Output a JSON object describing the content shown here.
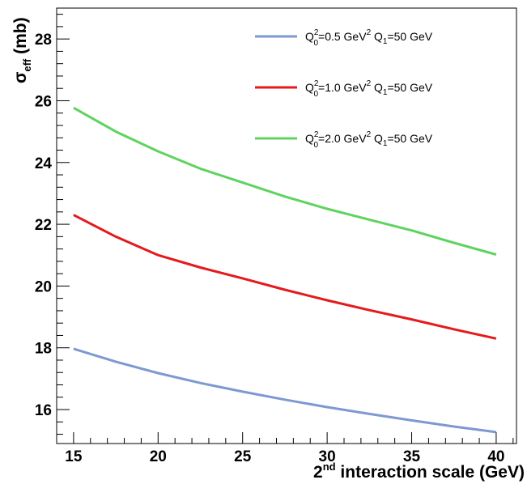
{
  "chart_data": {
    "type": "line",
    "xlabel": {
      "sup": "nd",
      "prefix": "2",
      "text": " interaction scale (GeV)"
    },
    "ylabel": {
      "main": "σ",
      "sub": "eff",
      "unit": " (mb)"
    },
    "xlim": [
      14,
      41.2
    ],
    "ylim": [
      14.9,
      29.0
    ],
    "xticks": [
      15,
      20,
      25,
      30,
      35,
      40
    ],
    "yticks": [
      16,
      18,
      20,
      22,
      24,
      26,
      28
    ],
    "xtick_labels": [
      "15",
      "20",
      "25",
      "30",
      "35",
      "40"
    ],
    "ytick_labels": [
      "16",
      "18",
      "20",
      "22",
      "24",
      "26",
      "28"
    ],
    "legend_position": "top-right",
    "series": [
      {
        "name": {
          "a": "Q",
          "a_sup": "2",
          "a_sub": "0",
          "b": "=0.5 GeV",
          "b_sup": "2",
          "c": " Q",
          "c_sub": "1",
          "d": "=50 GeV"
        },
        "color": "#7d99d1",
        "x": [
          15,
          17.5,
          20,
          22.5,
          25,
          27.5,
          30,
          32.5,
          35,
          37.5,
          40
        ],
        "values": [
          17.97,
          17.55,
          17.18,
          16.86,
          16.58,
          16.32,
          16.08,
          15.86,
          15.65,
          15.45,
          15.27
        ]
      },
      {
        "name": {
          "a": "Q",
          "a_sup": "2",
          "a_sub": "0",
          "b": "=1.0 GeV",
          "b_sup": "2",
          "c": " Q",
          "c_sub": "1",
          "d": "=50 GeV"
        },
        "color": "#e41a1c",
        "x": [
          15,
          17.5,
          20,
          22.5,
          25,
          27.5,
          30,
          32.5,
          35,
          37.5,
          40
        ],
        "values": [
          22.3,
          21.6,
          21.0,
          20.6,
          20.25,
          19.88,
          19.54,
          19.22,
          18.92,
          18.6,
          18.3
        ]
      },
      {
        "name": {
          "a": "Q",
          "a_sup": "2",
          "a_sub": "0",
          "b": "=2.0 GeV",
          "b_sup": "2",
          "c": " Q",
          "c_sub": "1",
          "d": "=50 GeV"
        },
        "color": "#5fd35f",
        "x": [
          15,
          17.5,
          20,
          22.5,
          25,
          27.5,
          30,
          32.5,
          35,
          37.5,
          40
        ],
        "values": [
          25.77,
          25.0,
          24.36,
          23.8,
          23.35,
          22.9,
          22.5,
          22.15,
          21.8,
          21.4,
          21.02
        ]
      }
    ]
  }
}
